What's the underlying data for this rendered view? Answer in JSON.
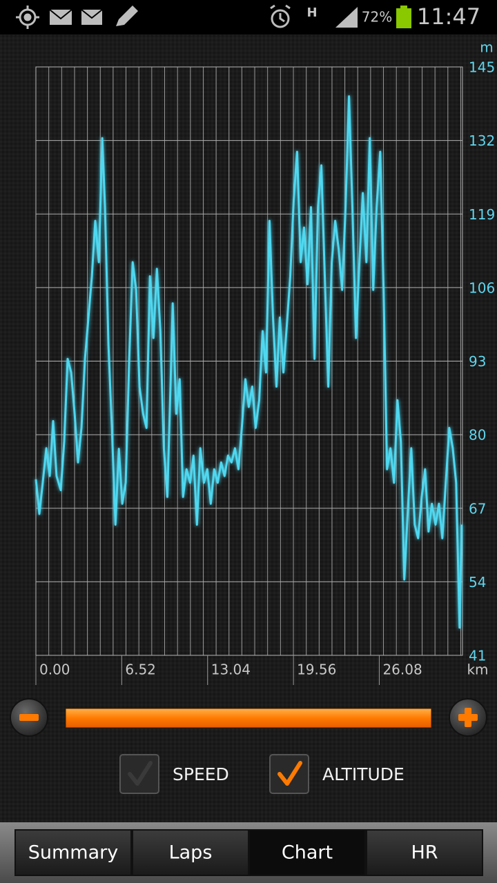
{
  "status_bar": {
    "network": "H",
    "battery": "72%",
    "time": "11:47"
  },
  "chart_data": {
    "type": "line",
    "y_unit": "m",
    "x_unit": "km",
    "xlim": [
      0,
      32.4
    ],
    "xticks": [
      {
        "value": 0,
        "label": "0.00"
      },
      6.52,
      13.04,
      19.56,
      26.08
    ],
    "ylim": [
      41,
      145
    ],
    "yticks": [
      41,
      54,
      67,
      80,
      93,
      106,
      119,
      132,
      145
    ],
    "grid": true,
    "x": [
      0,
      0.26,
      0.52,
      0.79,
      1.05,
      1.31,
      1.57,
      1.89,
      2.15,
      2.41,
      2.68,
      2.94,
      3.2,
      3.46,
      3.73,
      3.99,
      4.25,
      4.51,
      4.78,
      5.04,
      5.25,
      5.51,
      5.77,
      6.04,
      6.3,
      6.56,
      6.82,
      7.09,
      7.35,
      7.61,
      7.87,
      8.14,
      8.4,
      8.66,
      8.93,
      9.19,
      9.45,
      9.72,
      9.98,
      10.24,
      10.39,
      10.66,
      10.92,
      11.18,
      11.44,
      11.71,
      11.97,
      12.23,
      12.49,
      12.76,
      13.02,
      13.28,
      13.54,
      13.81,
      14.07,
      14.33,
      14.59,
      14.86,
      15.12,
      15.38,
      15.64,
      15.91,
      16.17,
      16.43,
      16.69,
      16.96,
      17.22,
      17.48,
      17.74,
      18.01,
      18.27,
      18.53,
      18.8,
      19.06,
      19.32,
      19.58,
      19.84,
      20.11,
      20.37,
      20.63,
      20.89,
      21.16,
      21.42,
      21.68,
      21.94,
      22.21,
      22.47,
      22.73,
      22.99,
      23.26,
      23.52,
      23.78,
      24.04,
      24.31,
      24.57,
      24.83,
      25.1,
      25.36,
      25.62,
      25.88,
      26.15,
      26.41,
      26.67,
      26.93,
      27.2,
      27.46,
      27.72,
      27.98,
      28.25,
      28.51,
      28.77,
      29.03,
      29.3,
      29.56,
      29.82,
      30.08,
      30.35,
      30.61,
      30.87,
      31.13,
      31.4,
      31.66,
      31.92,
      32.18,
      32.34
    ],
    "series": [
      {
        "name": "ALTITUDE",
        "color": "#4fd8f0",
        "checked": true,
        "values": [
          72.1,
          66,
          71.5,
          77.6,
          72.7,
          82.4,
          72.7,
          70.2,
          78.8,
          93.4,
          91,
          83.7,
          75.1,
          81.2,
          93.4,
          100.7,
          108,
          117.8,
          110.5,
          132.4,
          120.2,
          95.9,
          81.2,
          64.1,
          77.5,
          67.8,
          71.5,
          93.4,
          110.5,
          105.6,
          88.5,
          83.7,
          81.2,
          108,
          97.1,
          109.3,
          98.3,
          77.6,
          69,
          89.8,
          103.2,
          83.7,
          89.8,
          69,
          73.9,
          71.5,
          76.3,
          64.1,
          77.6,
          71.5,
          73.9,
          67.8,
          73.9,
          71.5,
          75.1,
          72.7,
          76.3,
          75.1,
          77.6,
          73.9,
          81.2,
          89.8,
          84.9,
          88.5,
          81.2,
          86.1,
          98.3,
          91,
          117.8,
          100.7,
          88.5,
          100.7,
          91,
          99.5,
          108,
          121.5,
          130,
          110.5,
          116.6,
          106.6,
          120.2,
          93.4,
          120.2,
          127.6,
          108,
          88.5,
          110.5,
          117.8,
          112.9,
          105.6,
          120.2,
          139.8,
          120.2,
          97.1,
          110.5,
          122.7,
          110.5,
          132.4,
          105.6,
          120.2,
          130,
          105.6,
          73.9,
          77.6,
          71.5,
          86.1,
          78.8,
          54.4,
          66.6,
          77.6,
          64.1,
          61.7,
          69,
          73.9,
          62.9,
          67.8,
          64.1,
          67.8,
          61.7,
          71.5,
          81.2,
          77.6,
          71.5,
          45.9,
          64.1
        ]
      }
    ]
  },
  "toggles": [
    {
      "label": "SPEED",
      "checked": false
    }
  ],
  "tabs": [
    "Summary",
    "Laps",
    "Chart",
    "HR"
  ],
  "selected_tab": 2
}
